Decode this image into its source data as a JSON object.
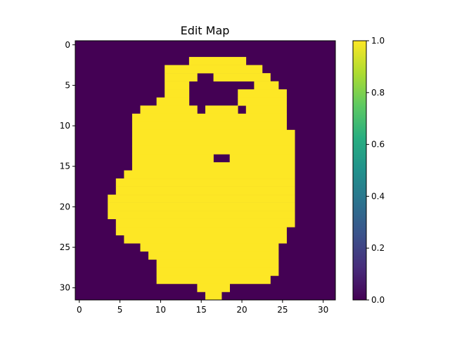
{
  "chart_data": {
    "type": "heatmap",
    "title": "Edit Map",
    "xlabel": "",
    "ylabel": "",
    "xlim": [
      -0.5,
      31.5
    ],
    "ylim": [
      31.5,
      -0.5
    ],
    "x_ticks": [
      "0",
      "5",
      "10",
      "15",
      "20",
      "25",
      "30"
    ],
    "y_ticks": [
      "0",
      "5",
      "10",
      "15",
      "20",
      "25",
      "30"
    ],
    "colorbar": {
      "ticks": [
        "0.0",
        "0.2",
        "0.4",
        "0.6",
        "0.8",
        "1.0"
      ],
      "min": 0.0,
      "max": 1.0
    },
    "colormap": "viridis",
    "low_color": "#440154",
    "high_color": "#fde725",
    "grid": "off",
    "rows": 32,
    "cols": 32,
    "row_spans": [
      [],
      [],
      [
        [
          14,
          20
        ]
      ],
      [
        [
          11,
          22
        ]
      ],
      [
        [
          11,
          14
        ],
        [
          17,
          23
        ]
      ],
      [
        [
          11,
          13
        ],
        [
          22,
          24
        ]
      ],
      [
        [
          11,
          13
        ],
        [
          20,
          25
        ]
      ],
      [
        [
          10,
          13
        ],
        [
          20,
          25
        ]
      ],
      [
        [
          8,
          14
        ],
        [
          16,
          19
        ],
        [
          21,
          25
        ]
      ],
      [
        [
          7,
          25
        ]
      ],
      [
        [
          7,
          25
        ]
      ],
      [
        [
          7,
          26
        ]
      ],
      [
        [
          7,
          26
        ]
      ],
      [
        [
          7,
          26
        ]
      ],
      [
        [
          7,
          16
        ],
        [
          19,
          26
        ]
      ],
      [
        [
          7,
          26
        ]
      ],
      [
        [
          6,
          26
        ]
      ],
      [
        [
          5,
          26
        ]
      ],
      [
        [
          5,
          26
        ]
      ],
      [
        [
          4,
          26
        ]
      ],
      [
        [
          4,
          26
        ]
      ],
      [
        [
          4,
          26
        ]
      ],
      [
        [
          5,
          26
        ]
      ],
      [
        [
          5,
          25
        ]
      ],
      [
        [
          6,
          25
        ]
      ],
      [
        [
          8,
          24
        ]
      ],
      [
        [
          9,
          24
        ]
      ],
      [
        [
          10,
          24
        ]
      ],
      [
        [
          10,
          24
        ]
      ],
      [
        [
          10,
          23
        ]
      ],
      [
        [
          15,
          18
        ]
      ],
      [
        [
          16,
          17
        ]
      ]
    ]
  }
}
